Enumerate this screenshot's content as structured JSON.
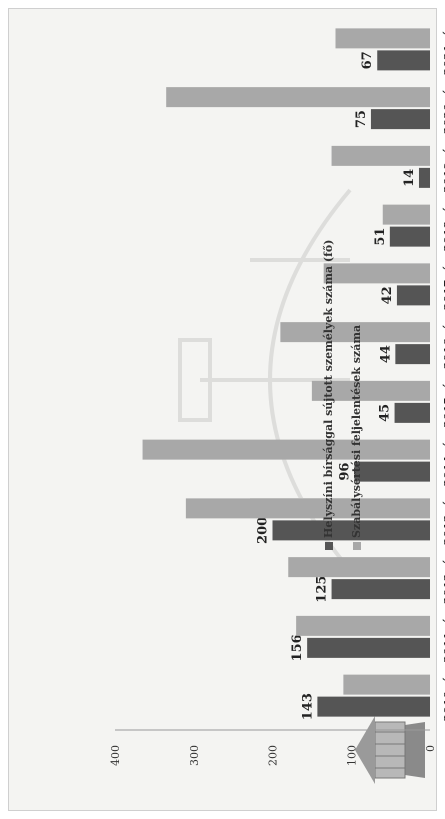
{
  "chart_data": {
    "type": "bar",
    "orientation": "rotated-horizontal",
    "categories": [
      "2010. év",
      "2011. év",
      "2012. év",
      "2013. év",
      "2014. év",
      "2015. év",
      "2016. év",
      "2017. év",
      "2018. év",
      "2019. év",
      "2020. év",
      "2021. év"
    ],
    "series": [
      {
        "name": "Helyszíni bírsággal sújtott személyek száma (fő)",
        "color": "#555555",
        "values": [
          143,
          156,
          125,
          200,
          96,
          45,
          44,
          42,
          51,
          14,
          75,
          67
        ],
        "labels_shown": true
      },
      {
        "name": "Szabálysértési feljelentések száma",
        "color": "#a8a8a8",
        "values": [
          110,
          170,
          180,
          310,
          365,
          150,
          190,
          135,
          60,
          125,
          335,
          120
        ],
        "labels_shown": false
      }
    ],
    "ticks": [
      "0",
      "100",
      "200",
      "300",
      "400"
    ],
    "ylim": [
      0,
      400
    ],
    "grid": false,
    "legend_position": "top"
  }
}
